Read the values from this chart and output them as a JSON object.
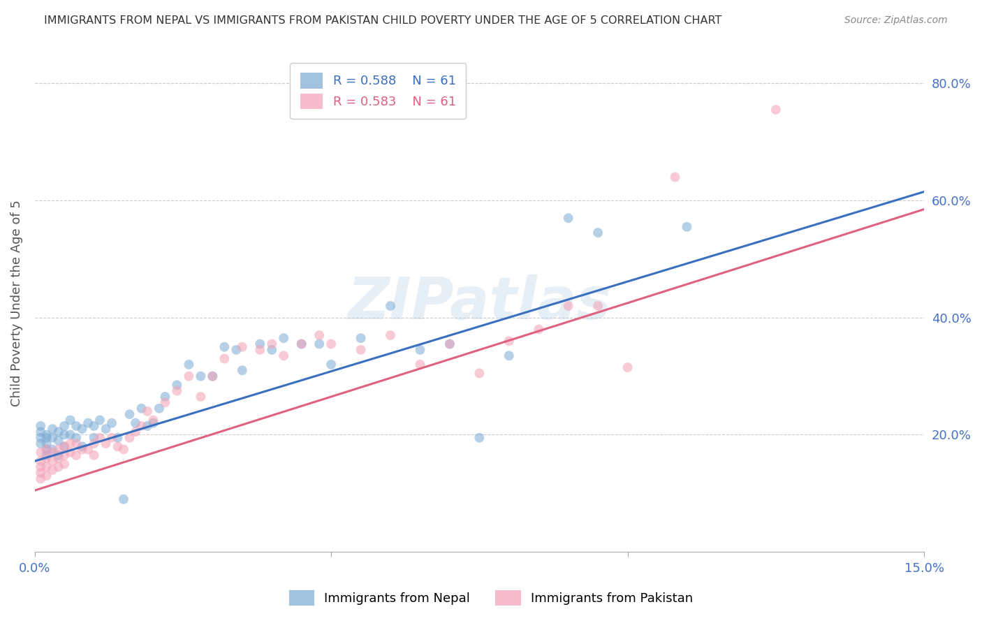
{
  "title": "IMMIGRANTS FROM NEPAL VS IMMIGRANTS FROM PAKISTAN CHILD POVERTY UNDER THE AGE OF 5 CORRELATION CHART",
  "source": "Source: ZipAtlas.com",
  "ylabel": "Child Poverty Under the Age of 5",
  "x_min": 0.0,
  "x_max": 0.15,
  "y_min": 0.0,
  "y_max": 0.85,
  "x_ticks": [
    0.0,
    0.05,
    0.1,
    0.15
  ],
  "x_tick_labels": [
    "0.0%",
    "",
    "",
    "15.0%"
  ],
  "y_ticks_right": [
    0.2,
    0.4,
    0.6,
    0.8
  ],
  "y_tick_labels_right": [
    "20.0%",
    "40.0%",
    "60.0%",
    "80.0%"
  ],
  "nepal_color": "#7aaad4",
  "pakistan_color": "#f4a0b5",
  "nepal_line_color": "#3a6fbf",
  "pakistan_line_color": "#e06080",
  "watermark": "ZIPatlas",
  "legend_r_nepal": "R = 0.588",
  "legend_n_nepal": "N = 61",
  "legend_r_pakistan": "R = 0.583",
  "legend_n_pakistan": "N = 61",
  "nepal_x": [
    0.001,
    0.001,
    0.001,
    0.001,
    0.002,
    0.002,
    0.002,
    0.002,
    0.002,
    0.003,
    0.003,
    0.003,
    0.004,
    0.004,
    0.004,
    0.005,
    0.005,
    0.005,
    0.006,
    0.006,
    0.007,
    0.007,
    0.008,
    0.008,
    0.009,
    0.01,
    0.01,
    0.011,
    0.012,
    0.013,
    0.014,
    0.015,
    0.016,
    0.017,
    0.018,
    0.019,
    0.02,
    0.021,
    0.022,
    0.024,
    0.026,
    0.028,
    0.03,
    0.032,
    0.034,
    0.035,
    0.038,
    0.04,
    0.042,
    0.045,
    0.048,
    0.05,
    0.055,
    0.06,
    0.065,
    0.07,
    0.075,
    0.08,
    0.09,
    0.095,
    0.11
  ],
  "nepal_y": [
    0.195,
    0.205,
    0.185,
    0.215,
    0.2,
    0.195,
    0.185,
    0.175,
    0.165,
    0.21,
    0.195,
    0.175,
    0.205,
    0.19,
    0.165,
    0.215,
    0.2,
    0.18,
    0.225,
    0.2,
    0.215,
    0.195,
    0.21,
    0.18,
    0.22,
    0.215,
    0.195,
    0.225,
    0.21,
    0.22,
    0.195,
    0.09,
    0.235,
    0.22,
    0.245,
    0.215,
    0.22,
    0.245,
    0.265,
    0.285,
    0.32,
    0.3,
    0.3,
    0.35,
    0.345,
    0.31,
    0.355,
    0.345,
    0.365,
    0.355,
    0.355,
    0.32,
    0.365,
    0.42,
    0.345,
    0.355,
    0.195,
    0.335,
    0.57,
    0.545,
    0.555
  ],
  "pakistan_x": [
    0.001,
    0.001,
    0.001,
    0.001,
    0.001,
    0.002,
    0.002,
    0.002,
    0.002,
    0.003,
    0.003,
    0.003,
    0.004,
    0.004,
    0.004,
    0.005,
    0.005,
    0.005,
    0.006,
    0.006,
    0.007,
    0.007,
    0.008,
    0.009,
    0.01,
    0.01,
    0.011,
    0.012,
    0.013,
    0.014,
    0.015,
    0.016,
    0.017,
    0.018,
    0.019,
    0.02,
    0.022,
    0.024,
    0.026,
    0.028,
    0.03,
    0.032,
    0.035,
    0.038,
    0.04,
    0.042,
    0.045,
    0.048,
    0.05,
    0.055,
    0.06,
    0.065,
    0.07,
    0.075,
    0.08,
    0.085,
    0.09,
    0.095,
    0.1,
    0.108,
    0.125
  ],
  "pakistan_y": [
    0.17,
    0.155,
    0.145,
    0.135,
    0.125,
    0.175,
    0.16,
    0.145,
    0.13,
    0.17,
    0.155,
    0.14,
    0.175,
    0.16,
    0.145,
    0.18,
    0.165,
    0.15,
    0.185,
    0.17,
    0.185,
    0.165,
    0.175,
    0.175,
    0.185,
    0.165,
    0.195,
    0.185,
    0.195,
    0.18,
    0.175,
    0.195,
    0.205,
    0.215,
    0.24,
    0.225,
    0.255,
    0.275,
    0.3,
    0.265,
    0.3,
    0.33,
    0.35,
    0.345,
    0.355,
    0.335,
    0.355,
    0.37,
    0.355,
    0.345,
    0.37,
    0.32,
    0.355,
    0.305,
    0.36,
    0.38,
    0.42,
    0.42,
    0.315,
    0.64,
    0.755
  ],
  "nepal_line_x": [
    0.0,
    0.15
  ],
  "nepal_line_y": [
    0.155,
    0.615
  ],
  "pakistan_line_x": [
    0.0,
    0.15
  ],
  "pakistan_line_y": [
    0.105,
    0.585
  ],
  "background_color": "#ffffff",
  "grid_color": "#cccccc",
  "title_color": "#333333",
  "axis_label_color": "#555555",
  "tick_color": "#4472c4",
  "marker_size": 100,
  "marker_alpha": 0.55
}
